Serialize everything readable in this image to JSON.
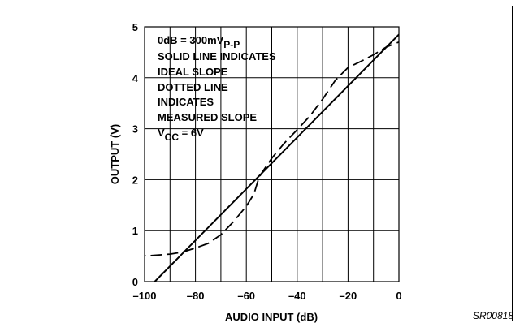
{
  "chart_data": {
    "type": "line",
    "xlabel": "AUDIO INPUT (dB)",
    "ylabel": "OUTPUT (V)",
    "xlim": [
      -100,
      0
    ],
    "ylim": [
      0,
      5
    ],
    "x_ticks": [
      "-100",
      "-80",
      "-60",
      "-40",
      "-20",
      "0"
    ],
    "y_ticks": [
      "0",
      "1",
      "2",
      "3",
      "4",
      "5"
    ],
    "grid": true,
    "series": [
      {
        "style": "solid",
        "x": [
          -96,
          0
        ],
        "y": [
          0,
          4.85
        ]
      },
      {
        "style": "dashed",
        "x": [
          -104,
          -98,
          -90,
          -85,
          -80,
          -75,
          -70,
          -65,
          -60,
          -57,
          -55,
          -53,
          -50,
          -45,
          -40,
          -35,
          -30,
          -25,
          -20,
          -15,
          -10,
          -5,
          0
        ],
        "y": [
          0.5,
          0.51,
          0.54,
          0.58,
          0.66,
          0.75,
          0.92,
          1.18,
          1.48,
          1.72,
          2.05,
          2.2,
          2.42,
          2.72,
          2.98,
          3.25,
          3.58,
          3.95,
          4.2,
          4.32,
          4.45,
          4.6,
          4.7
        ]
      }
    ],
    "annotation": {
      "line1_main": "0dB = 300mV",
      "line1_sub": "P-P",
      "line2": "SOLID LINE INDICATES",
      "line3": "IDEAL SLOPE",
      "line4": "DOTTED LINE",
      "line5": "INDICATES",
      "line6": "MEASURED SLOPE",
      "line7_main": "V",
      "line7_sub": "CC",
      "line7_rest": " = 6V"
    },
    "figure_code": "SR00818"
  }
}
